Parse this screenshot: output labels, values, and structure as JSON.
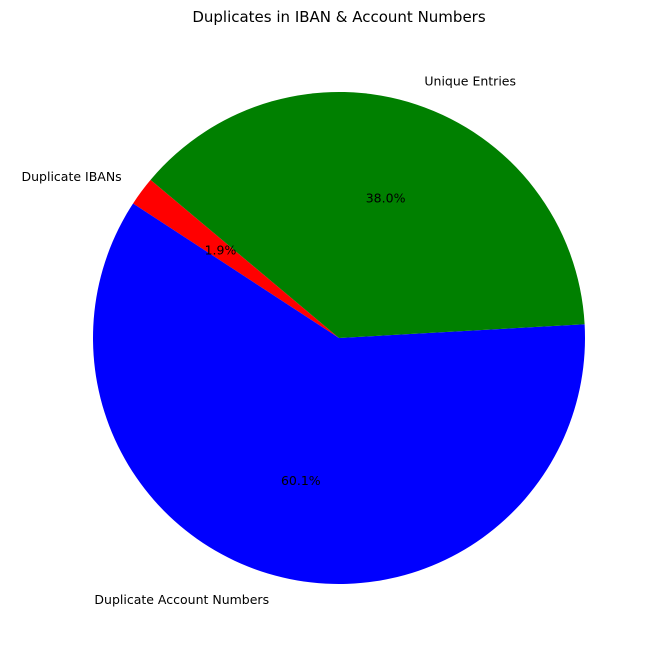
{
  "chart_data": {
    "type": "pie",
    "title": "Duplicates in IBAN & Account Numbers",
    "start_angle_deg": 140,
    "direction": "counterclockwise",
    "slices": [
      {
        "label": "Duplicate IBANs",
        "value": 1.9,
        "pct_label": "1.9%",
        "color": "#ff0000"
      },
      {
        "label": "Duplicate Account Numbers",
        "value": 60.1,
        "pct_label": "60.1%",
        "color": "#0000ff"
      },
      {
        "label": "Unique Entries",
        "value": 38.0,
        "pct_label": "38.0%",
        "color": "#008000"
      }
    ]
  }
}
